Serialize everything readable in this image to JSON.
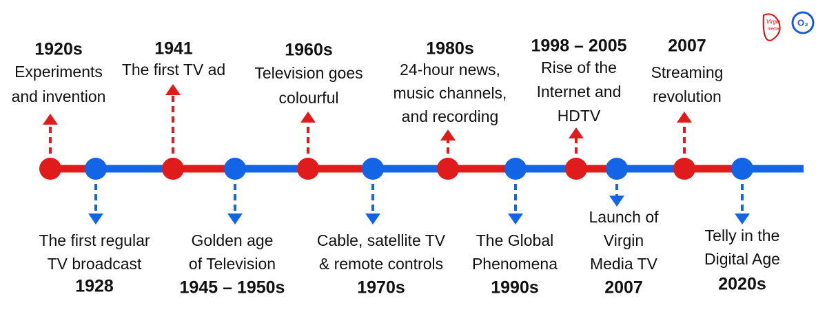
{
  "logo": {
    "virgin": "Virgin",
    "media": "media",
    "o2": "O₂"
  },
  "above": [
    {
      "year": "1920s",
      "lines": [
        "Experiments",
        "and invention"
      ]
    },
    {
      "year": "1941",
      "lines": [
        "The first TV ad"
      ]
    },
    {
      "year": "1960s",
      "lines": [
        "Television goes",
        "colourful"
      ]
    },
    {
      "year": "1980s",
      "lines": [
        "24-hour news,",
        "music channels,",
        "and recording"
      ]
    },
    {
      "year": "1998 – 2005",
      "lines": [
        "Rise of the",
        "Internet and",
        "HDTV"
      ]
    },
    {
      "year": "2007",
      "lines": [
        "Streaming",
        "revolution"
      ]
    }
  ],
  "below": [
    {
      "year": "1928",
      "lines": [
        "The first regular",
        "TV broadcast"
      ]
    },
    {
      "year": "1945 – 1950s",
      "lines": [
        "Golden age",
        "of Television"
      ]
    },
    {
      "year": "1970s",
      "lines": [
        "Cable, satellite TV",
        "& remote controls"
      ]
    },
    {
      "year": "1990s",
      "lines": [
        "The Global",
        "Phenomena"
      ]
    },
    {
      "year": "2007",
      "lines": [
        "Launch of",
        "Virgin",
        "Media TV"
      ]
    },
    {
      "year": "2020s",
      "lines": [
        "Telly in the",
        "Digital Age"
      ]
    }
  ]
}
